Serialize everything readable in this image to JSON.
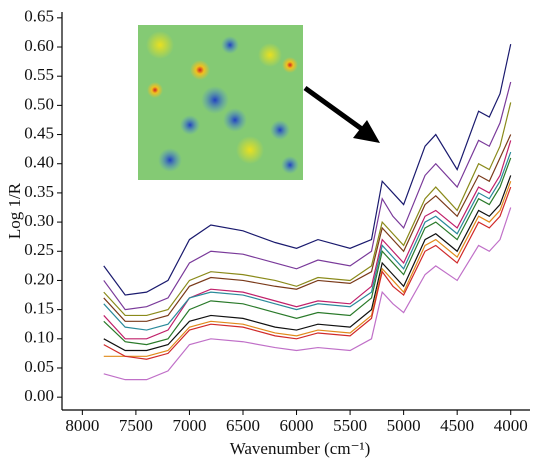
{
  "chart_data": {
    "type": "line",
    "x_label": "Wavenumber (cm⁻¹)",
    "y_label": "Log 1/R",
    "x": [
      7800,
      7600,
      7400,
      7200,
      7000,
      6800,
      6500,
      6200,
      6000,
      5800,
      5500,
      5300,
      5200,
      5100,
      5000,
      4800,
      4700,
      4500,
      4300,
      4200,
      4100,
      4000
    ],
    "series": [
      {
        "color": "#1a1a6e",
        "values": [
          0.225,
          0.175,
          0.18,
          0.2,
          0.27,
          0.295,
          0.285,
          0.265,
          0.255,
          0.27,
          0.255,
          0.27,
          0.37,
          0.35,
          0.33,
          0.43,
          0.45,
          0.39,
          0.49,
          0.48,
          0.52,
          0.605
        ]
      },
      {
        "color": "#7a3a9a",
        "values": [
          0.2,
          0.15,
          0.155,
          0.17,
          0.23,
          0.25,
          0.245,
          0.23,
          0.22,
          0.235,
          0.225,
          0.25,
          0.34,
          0.31,
          0.29,
          0.38,
          0.4,
          0.36,
          0.44,
          0.43,
          0.47,
          0.54
        ]
      },
      {
        "color": "#8a8a1a",
        "values": [
          0.18,
          0.14,
          0.14,
          0.15,
          0.2,
          0.215,
          0.21,
          0.2,
          0.19,
          0.205,
          0.2,
          0.225,
          0.3,
          0.28,
          0.26,
          0.34,
          0.36,
          0.32,
          0.4,
          0.39,
          0.43,
          0.505
        ]
      },
      {
        "color": "#7a3a1a",
        "values": [
          0.17,
          0.13,
          0.13,
          0.14,
          0.19,
          0.205,
          0.2,
          0.19,
          0.185,
          0.2,
          0.195,
          0.215,
          0.29,
          0.27,
          0.25,
          0.33,
          0.345,
          0.31,
          0.38,
          0.37,
          0.41,
          0.45
        ]
      },
      {
        "color": "#c0206a",
        "values": [
          0.14,
          0.1,
          0.1,
          0.115,
          0.17,
          0.185,
          0.18,
          0.165,
          0.155,
          0.165,
          0.16,
          0.19,
          0.27,
          0.25,
          0.23,
          0.31,
          0.32,
          0.29,
          0.36,
          0.35,
          0.38,
          0.44
        ]
      },
      {
        "color": "#2a8a9a",
        "values": [
          0.16,
          0.12,
          0.115,
          0.125,
          0.17,
          0.18,
          0.175,
          0.16,
          0.15,
          0.16,
          0.155,
          0.18,
          0.26,
          0.24,
          0.22,
          0.3,
          0.31,
          0.28,
          0.35,
          0.34,
          0.37,
          0.42
        ]
      },
      {
        "color": "#2a7a2a",
        "values": [
          0.13,
          0.095,
          0.09,
          0.1,
          0.15,
          0.165,
          0.16,
          0.145,
          0.135,
          0.145,
          0.14,
          0.17,
          0.25,
          0.23,
          0.21,
          0.29,
          0.3,
          0.27,
          0.34,
          0.33,
          0.36,
          0.41
        ]
      },
      {
        "color": "#111111",
        "values": [
          0.1,
          0.08,
          0.08,
          0.09,
          0.13,
          0.14,
          0.135,
          0.12,
          0.115,
          0.125,
          0.12,
          0.15,
          0.23,
          0.21,
          0.19,
          0.27,
          0.28,
          0.25,
          0.32,
          0.31,
          0.33,
          0.38
        ]
      },
      {
        "color": "#e08a1a",
        "values": [
          0.07,
          0.07,
          0.07,
          0.08,
          0.12,
          0.13,
          0.125,
          0.11,
          0.105,
          0.115,
          0.11,
          0.14,
          0.22,
          0.2,
          0.18,
          0.26,
          0.27,
          0.24,
          0.31,
          0.3,
          0.32,
          0.37
        ]
      },
      {
        "color": "#d02a2a",
        "values": [
          0.09,
          0.07,
          0.065,
          0.075,
          0.115,
          0.125,
          0.12,
          0.105,
          0.1,
          0.11,
          0.105,
          0.135,
          0.215,
          0.19,
          0.175,
          0.25,
          0.26,
          0.23,
          0.3,
          0.29,
          0.31,
          0.36
        ]
      },
      {
        "color": "#c070c8",
        "values": [
          0.04,
          0.03,
          0.03,
          0.045,
          0.09,
          0.1,
          0.095,
          0.085,
          0.08,
          0.085,
          0.08,
          0.1,
          0.18,
          0.16,
          0.145,
          0.21,
          0.225,
          0.2,
          0.26,
          0.25,
          0.27,
          0.325
        ]
      }
    ],
    "xlim": [
      8190,
      3820
    ],
    "xticks": [
      8000,
      7500,
      7000,
      6500,
      6000,
      5500,
      5000,
      4500,
      4000
    ],
    "ylim": [
      -0.022,
      0.66
    ],
    "yticks": [
      {
        "value": 0,
        "label": "0.00"
      },
      {
        "value": 0.05,
        "label": "0.05"
      },
      {
        "value": 0.1,
        "label": "0.10"
      },
      {
        "value": 0.15,
        "label": "0.15"
      },
      {
        "value": 0.2,
        "label": "0.20"
      },
      {
        "value": 0.25,
        "label": "0.25"
      },
      {
        "value": 0.3,
        "label": "0.30"
      },
      {
        "value": 0.35,
        "label": "0.35"
      },
      {
        "value": 0.4,
        "label": "0.40"
      },
      {
        "value": 0.45,
        "label": "0.45"
      },
      {
        "value": 0.5,
        "label": "0.50"
      },
      {
        "value": 0.55,
        "label": "0.55"
      },
      {
        "value": 0.6,
        "label": "0.60"
      },
      {
        "value": 0.65,
        "label": "0.65"
      }
    ]
  }
}
